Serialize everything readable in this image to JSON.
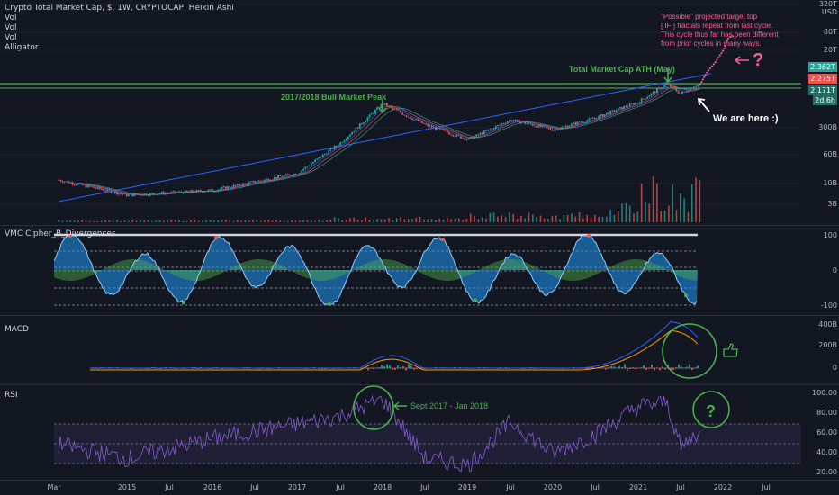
{
  "header": {
    "title": "Crypto Total Market Cap, $, 1W, CRYPTOCAP, Heikin Ashi",
    "indicators": [
      "Vol",
      "Vol",
      "Vol",
      "Alligator"
    ]
  },
  "price_axis": {
    "unit": "USD",
    "ticks": [
      "320T",
      "80T",
      "20T",
      "300B",
      "60B",
      "10B",
      "3B"
    ],
    "pills": [
      {
        "text": "2.362T",
        "color": "#26a69a"
      },
      {
        "text": "2.275T",
        "color": "#ef5350"
      },
      {
        "text": "2.171T",
        "color": "#2a7a6e"
      },
      {
        "text": "2d 6h",
        "color": "#2a7a6e"
      }
    ]
  },
  "annotations": {
    "projection_text": [
      "\"Possible\" projected target top",
      "[ IF ] fractals repeat from last cycle.",
      "This cycle thus far has been different",
      "from prior cycles in many ways."
    ],
    "question_mark": "?",
    "ath_label": "Total Market Cap ATH (May)",
    "peak_label": "2017/2018 Bull Market Peak",
    "here_label": "We are here :)",
    "rsi_period_label": "Sept 2017 - Jan 2018",
    "rsi_question": "?"
  },
  "vmc": {
    "name": "VMC Cipher_B_Divergences",
    "ticks": [
      "100",
      "0",
      "-100"
    ]
  },
  "macd": {
    "name": "MACD",
    "ticks": [
      "400B",
      "200B",
      "0"
    ]
  },
  "rsi": {
    "name": "RSI",
    "ticks": [
      "100.00",
      "80.00",
      "60.00",
      "40.00",
      "20.00"
    ]
  },
  "time_axis": [
    "Mar",
    "2015",
    "Jul",
    "2016",
    "Jul",
    "2017",
    "Jul",
    "2018",
    "Jul",
    "2019",
    "Jul",
    "2020",
    "Jul",
    "2021",
    "Jul",
    "2022",
    "Jul"
  ],
  "colors": {
    "up": "#26a69a",
    "down": "#ef5350",
    "green": "#4caf50",
    "pink": "#f06292",
    "blue": "#2962ff"
  },
  "chart_data": [
    {
      "type": "line",
      "title": "Crypto Total Market Cap",
      "scale": "log",
      "x": [
        "2014-03",
        "2015-01",
        "2016-01",
        "2017-01",
        "2017-07",
        "2018-01",
        "2018-07",
        "2019-01",
        "2019-07",
        "2020-01",
        "2020-07",
        "2021-01",
        "2021-05",
        "2021-07",
        "2021-09"
      ],
      "series": [
        {
          "values": [
            12,
            5,
            6.5,
            17,
            90,
            800,
            250,
            110,
            330,
            190,
            370,
            900,
            2400,
            1400,
            2275
          ]
        }
      ],
      "ylim": [
        3,
        320000
      ]
    },
    {
      "type": "line",
      "title": "RSI",
      "x": [
        "2014-03",
        "2015-01",
        "2016-01",
        "2017-01",
        "2017-07",
        "2018-01",
        "2018-07",
        "2019-01",
        "2019-07",
        "2020-01",
        "2020-07",
        "2021-01",
        "2021-05",
        "2021-07",
        "2021-09"
      ],
      "series": [
        {
          "values": [
            50,
            35,
            55,
            70,
            78,
            95,
            35,
            28,
            72,
            40,
            60,
            88,
            92,
            45,
            60
          ]
        }
      ],
      "ylim": [
        20,
        100
      ]
    }
  ]
}
